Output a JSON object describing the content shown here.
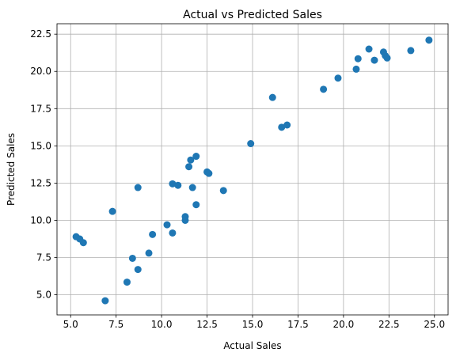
{
  "chart_data": {
    "type": "scatter",
    "title": "Actual vs Predicted Sales",
    "xlabel": "Actual Sales",
    "ylabel": "Predicted Sales",
    "xlim": [
      4.25,
      25.75
    ],
    "ylim": [
      3.65,
      23.2
    ],
    "xticks": [
      5.0,
      7.5,
      10.0,
      12.5,
      15.0,
      17.5,
      20.0,
      22.5,
      25.0
    ],
    "yticks": [
      5.0,
      7.5,
      10.0,
      12.5,
      15.0,
      17.5,
      20.0,
      22.5
    ],
    "grid": true,
    "marker_color": "#1f77b4",
    "points": [
      {
        "x": 5.3,
        "y": 8.9
      },
      {
        "x": 5.5,
        "y": 8.75
      },
      {
        "x": 5.7,
        "y": 8.5
      },
      {
        "x": 6.9,
        "y": 4.6
      },
      {
        "x": 7.3,
        "y": 10.6
      },
      {
        "x": 8.1,
        "y": 5.85
      },
      {
        "x": 8.4,
        "y": 7.45
      },
      {
        "x": 8.7,
        "y": 6.7
      },
      {
        "x": 8.7,
        "y": 12.2
      },
      {
        "x": 9.3,
        "y": 7.8
      },
      {
        "x": 9.5,
        "y": 9.05
      },
      {
        "x": 10.3,
        "y": 9.7
      },
      {
        "x": 10.6,
        "y": 9.15
      },
      {
        "x": 10.6,
        "y": 12.45
      },
      {
        "x": 10.9,
        "y": 12.35
      },
      {
        "x": 11.3,
        "y": 10.0
      },
      {
        "x": 11.3,
        "y": 10.25
      },
      {
        "x": 11.5,
        "y": 13.6
      },
      {
        "x": 11.6,
        "y": 14.05
      },
      {
        "x": 11.7,
        "y": 12.2
      },
      {
        "x": 11.9,
        "y": 14.3
      },
      {
        "x": 11.9,
        "y": 11.05
      },
      {
        "x": 12.5,
        "y": 13.25
      },
      {
        "x": 12.6,
        "y": 13.15
      },
      {
        "x": 13.4,
        "y": 12.0
      },
      {
        "x": 14.9,
        "y": 15.15
      },
      {
        "x": 16.1,
        "y": 18.25
      },
      {
        "x": 16.6,
        "y": 16.25
      },
      {
        "x": 16.9,
        "y": 16.4
      },
      {
        "x": 18.9,
        "y": 18.8
      },
      {
        "x": 19.7,
        "y": 19.55
      },
      {
        "x": 20.7,
        "y": 20.15
      },
      {
        "x": 20.8,
        "y": 20.85
      },
      {
        "x": 21.4,
        "y": 21.5
      },
      {
        "x": 21.7,
        "y": 20.75
      },
      {
        "x": 22.2,
        "y": 21.3
      },
      {
        "x": 22.3,
        "y": 21.05
      },
      {
        "x": 22.4,
        "y": 20.9
      },
      {
        "x": 23.7,
        "y": 21.4
      },
      {
        "x": 24.7,
        "y": 22.1
      }
    ]
  }
}
